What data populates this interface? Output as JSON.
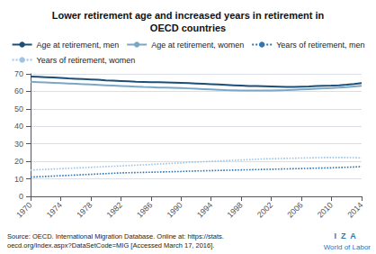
{
  "chart_data": {
    "type": "line",
    "title": "Lower retirement age and increased years in retirement in\nOECD countries",
    "x": [
      1970,
      1971,
      1972,
      1973,
      1974,
      1975,
      1976,
      1977,
      1978,
      1979,
      1980,
      1981,
      1982,
      1983,
      1984,
      1985,
      1986,
      1987,
      1988,
      1989,
      1990,
      1991,
      1992,
      1993,
      1994,
      1995,
      1996,
      1997,
      1998,
      1999,
      2000,
      2001,
      2002,
      2003,
      2004,
      2005,
      2006,
      2007,
      2008,
      2009,
      2010,
      2011,
      2012,
      2013,
      2014
    ],
    "series": [
      {
        "name": "Age at retirement, men",
        "color": "#1a4f7a",
        "line_style": "solid",
        "values": [
          68.5,
          68.3,
          68.1,
          67.9,
          67.7,
          67.4,
          67.2,
          67.0,
          66.8,
          66.6,
          66.3,
          66.1,
          65.9,
          65.7,
          65.5,
          65.4,
          65.3,
          65.2,
          65.1,
          65.0,
          64.9,
          64.7,
          64.5,
          64.3,
          64.1,
          63.9,
          63.7,
          63.5,
          63.3,
          63.1,
          63.0,
          62.9,
          62.8,
          62.7,
          62.6,
          62.6,
          62.7,
          62.8,
          63.0,
          63.2,
          63.3,
          63.5,
          63.8,
          64.2,
          64.7
        ]
      },
      {
        "name": "Age at retirement, women",
        "color": "#7ba7c7",
        "line_style": "solid",
        "values": [
          65.5,
          65.3,
          65.1,
          64.9,
          64.7,
          64.5,
          64.3,
          64.1,
          63.9,
          63.7,
          63.5,
          63.3,
          63.1,
          62.9,
          62.7,
          62.5,
          62.4,
          62.2,
          62.1,
          62.0,
          61.9,
          61.7,
          61.5,
          61.3,
          61.1,
          60.9,
          60.7,
          60.6,
          60.5,
          60.5,
          60.5,
          60.5,
          60.5,
          60.6,
          60.7,
          60.9,
          61.1,
          61.3,
          61.5,
          61.7,
          61.9,
          62.1,
          62.4,
          62.8,
          63.2
        ]
      },
      {
        "name": "Years of retirement, men",
        "color": "#2e75b6",
        "line_style": "dotted",
        "values": [
          11.0,
          11.2,
          11.4,
          11.6,
          11.8,
          12.0,
          12.2,
          12.4,
          12.6,
          12.8,
          13.0,
          13.2,
          13.4,
          13.5,
          13.6,
          13.7,
          13.8,
          13.9,
          14.0,
          14.1,
          14.2,
          14.4,
          14.5,
          14.6,
          14.7,
          14.8,
          14.9,
          15.0,
          15.1,
          15.2,
          15.3,
          15.4,
          15.5,
          15.6,
          15.7,
          15.8,
          15.9,
          16.0,
          16.1,
          16.2,
          16.3,
          16.5,
          16.6,
          16.8,
          17.0
        ]
      },
      {
        "name": "Years of retirement, women",
        "color": "#9dc3e6",
        "line_style": "dotted",
        "values": [
          15.0,
          15.2,
          15.4,
          15.6,
          15.8,
          16.0,
          16.2,
          16.4,
          16.6,
          16.8,
          17.0,
          17.2,
          17.4,
          17.6,
          17.8,
          18.0,
          18.2,
          18.5,
          18.7,
          18.9,
          19.1,
          19.4,
          19.6,
          19.8,
          20.0,
          20.2,
          20.4,
          20.6,
          20.8,
          21.0,
          21.2,
          21.4,
          21.5,
          21.6,
          21.7,
          21.8,
          21.9,
          22.0,
          22.1,
          22.2,
          22.2,
          22.2,
          22.2,
          22.1,
          22.0
        ]
      }
    ],
    "xlim": [
      1970,
      2014
    ],
    "xticks": [
      1970,
      1974,
      1978,
      1982,
      1986,
      1990,
      1994,
      1998,
      2002,
      2006,
      2010,
      2014
    ],
    "ylim": [
      0,
      70
    ],
    "yticks": [
      0,
      10,
      20,
      30,
      40,
      50,
      60,
      70
    ],
    "grid": true,
    "annotations": [
      "Source: OECD. International Migration Database. Online at: https://stats.\noecd.org/Index.aspx?DataSetCode=MIG [Accessed March 17, 2016].",
      "I  Z  A",
      "World of Labor"
    ]
  }
}
